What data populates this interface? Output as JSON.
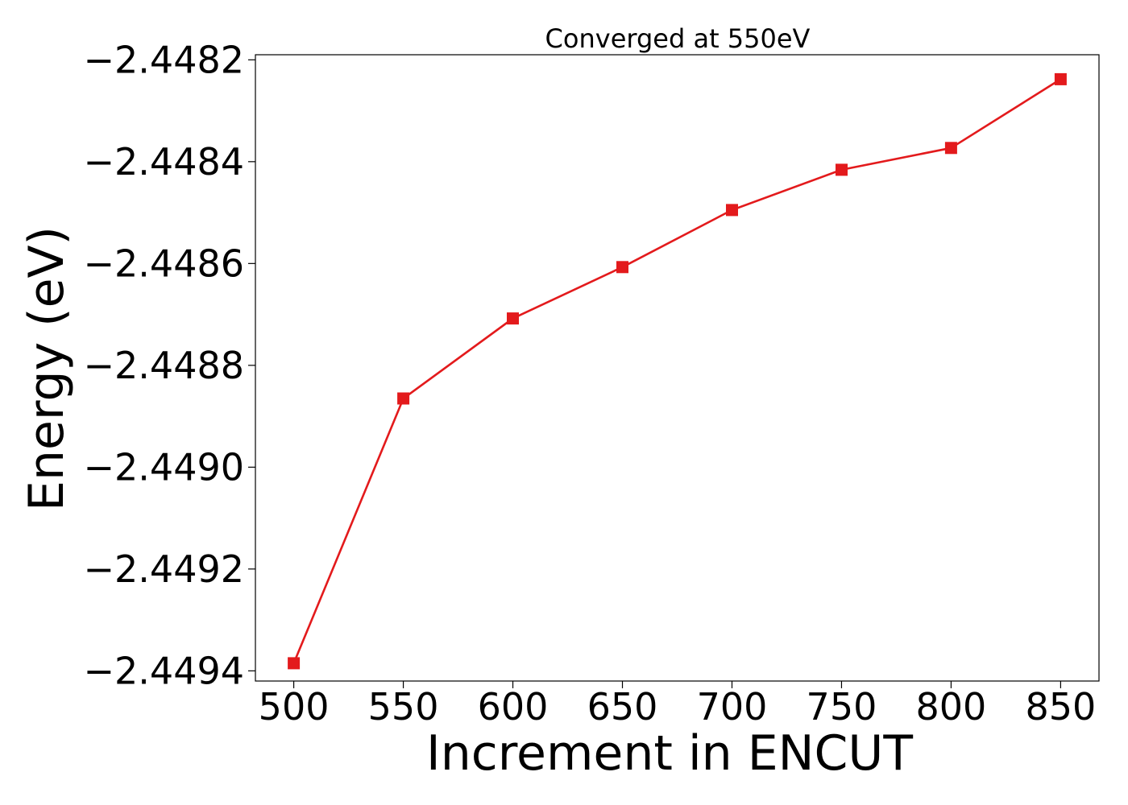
{
  "chart_data": {
    "type": "line",
    "title": "Converged at 550eV",
    "xlabel": "Increment in ENCUT",
    "ylabel": "Energy (eV)",
    "x": [
      500,
      550,
      600,
      650,
      700,
      750,
      800,
      850
    ],
    "xticks": [
      500,
      550,
      600,
      650,
      700,
      750,
      800,
      850
    ],
    "xtick_labels": [
      "500",
      "550",
      "600",
      "650",
      "700",
      "750",
      "800",
      "850"
    ],
    "xlim": [
      482.5,
      867.5
    ],
    "yticks": [
      -2.4494,
      -2.4492,
      -2.449,
      -2.4488,
      -2.4486,
      -2.4484,
      -2.4482
    ],
    "ytick_labels": [
      "−2.4494",
      "−2.4492",
      "−2.4490",
      "−2.4488",
      "−2.4486",
      "−2.4484",
      "−2.4482"
    ],
    "ylim": [
      -2.44942,
      -2.44819
    ],
    "grid": false,
    "series": [
      {
        "values": [
          -2.449385,
          -2.448865,
          -2.448708,
          -2.448607,
          -2.448495,
          -2.448416,
          -2.448373,
          -2.448238
        ],
        "color": "#e31a1c",
        "marker": "square"
      }
    ]
  }
}
